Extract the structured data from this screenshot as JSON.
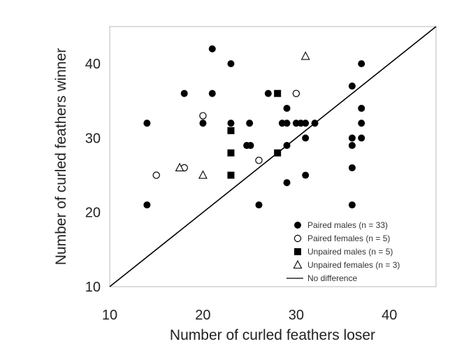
{
  "chart_data": {
    "type": "scatter",
    "title": "",
    "xlabel": "Number of curled feathers loser",
    "ylabel": "Number of curled feathers winner",
    "xlim": [
      10,
      45
    ],
    "ylim": [
      10,
      45
    ],
    "xticks": [
      10,
      20,
      30,
      40
    ],
    "yticks": [
      10,
      20,
      30,
      40
    ],
    "grid": false,
    "legend_position": "bottom-right",
    "series": [
      {
        "name": "Paired males (n = 33)",
        "marker": "filled-circle",
        "points": [
          {
            "x": 14,
            "y": 32
          },
          {
            "x": 14,
            "y": 21
          },
          {
            "x": 18,
            "y": 36
          },
          {
            "x": 20,
            "y": 32
          },
          {
            "x": 21,
            "y": 42
          },
          {
            "x": 21,
            "y": 36
          },
          {
            "x": 23,
            "y": 40
          },
          {
            "x": 23,
            "y": 32
          },
          {
            "x": 24.7,
            "y": 29
          },
          {
            "x": 25.1,
            "y": 29
          },
          {
            "x": 25,
            "y": 32
          },
          {
            "x": 26,
            "y": 21
          },
          {
            "x": 27,
            "y": 36
          },
          {
            "x": 28.5,
            "y": 32
          },
          {
            "x": 29,
            "y": 34
          },
          {
            "x": 29,
            "y": 32
          },
          {
            "x": 29,
            "y": 29
          },
          {
            "x": 29,
            "y": 24
          },
          {
            "x": 30,
            "y": 32
          },
          {
            "x": 30.5,
            "y": 32
          },
          {
            "x": 31,
            "y": 32
          },
          {
            "x": 31,
            "y": 30
          },
          {
            "x": 31,
            "y": 25
          },
          {
            "x": 32,
            "y": 32
          },
          {
            "x": 36,
            "y": 37
          },
          {
            "x": 36,
            "y": 30
          },
          {
            "x": 36,
            "y": 29
          },
          {
            "x": 36,
            "y": 26
          },
          {
            "x": 36,
            "y": 21
          },
          {
            "x": 37,
            "y": 40
          },
          {
            "x": 37,
            "y": 34
          },
          {
            "x": 37,
            "y": 32
          },
          {
            "x": 37,
            "y": 30
          }
        ]
      },
      {
        "name": "Paired females (n = 5)",
        "marker": "open-circle",
        "points": [
          {
            "x": 15,
            "y": 25
          },
          {
            "x": 18,
            "y": 26
          },
          {
            "x": 20,
            "y": 33
          },
          {
            "x": 26,
            "y": 27
          },
          {
            "x": 30,
            "y": 36
          }
        ]
      },
      {
        "name": "Unpaired males (n = 5)",
        "marker": "filled-square",
        "points": [
          {
            "x": 23,
            "y": 31
          },
          {
            "x": 23,
            "y": 28
          },
          {
            "x": 23,
            "y": 25
          },
          {
            "x": 28,
            "y": 36
          },
          {
            "x": 28,
            "y": 28
          }
        ]
      },
      {
        "name": "Unpaired females (n = 3)",
        "marker": "open-triangle",
        "points": [
          {
            "x": 17.5,
            "y": 26
          },
          {
            "x": 20,
            "y": 25
          },
          {
            "x": 31,
            "y": 41
          }
        ]
      },
      {
        "name": "No difference",
        "marker": "line",
        "points": [
          {
            "x": 10,
            "y": 10
          },
          {
            "x": 45,
            "y": 45
          }
        ]
      }
    ]
  }
}
